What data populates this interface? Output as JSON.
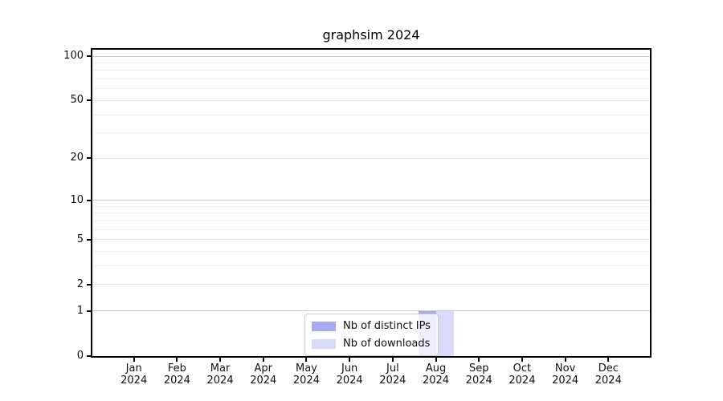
{
  "title": "graphsim 2024",
  "chart_data": {
    "type": "bar",
    "title": "graphsim 2024",
    "yscale": "log1p",
    "ylim": [
      0,
      112
    ],
    "y_major_ticks": [
      100,
      50,
      20,
      10,
      5,
      2,
      1,
      0
    ],
    "y_power_ticks": [
      100,
      10,
      1
    ],
    "y_minor_ticks": [
      3,
      4,
      6,
      7,
      8,
      9,
      30,
      40,
      60,
      70,
      80,
      90
    ],
    "categories": [
      "Jan",
      "Feb",
      "Mar",
      "Apr",
      "May",
      "Jun",
      "Jul",
      "Aug",
      "Sep",
      "Oct",
      "Nov",
      "Dec"
    ],
    "x_tick_year": "2024",
    "series": [
      {
        "name": "Nb of distinct IPs",
        "color": "#a9a9f2",
        "values": [
          0,
          0,
          0,
          0,
          0,
          0,
          0,
          1,
          0,
          0,
          0,
          0
        ]
      },
      {
        "name": "Nb of downloads",
        "color": "#d9d9fa",
        "values": [
          0,
          0,
          0,
          0,
          0,
          0,
          0,
          1,
          0,
          0,
          0,
          0
        ]
      }
    ],
    "grid": "horizontal",
    "legend_position": "lower center",
    "colors": {
      "axis": "#000000",
      "grid_power": "#c8c8c8",
      "grid_major": "#e2e2e2",
      "grid_minor": "#f0f0f0",
      "background": "#ffffff",
      "text": "#111111"
    }
  },
  "legend": {
    "items": [
      {
        "label": "Nb of distinct IPs",
        "color": "#a9a9f2"
      },
      {
        "label": "Nb of downloads",
        "color": "#d9d9fa"
      }
    ]
  }
}
